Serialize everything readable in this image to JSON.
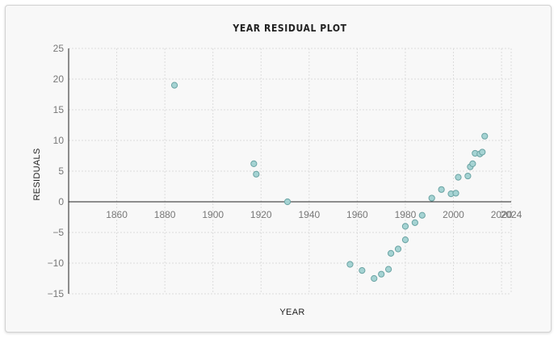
{
  "chart_data": {
    "type": "scatter",
    "title": "YEAR RESIDUAL PLOT",
    "xlabel": "YEAR",
    "ylabel": "RESIDUALS",
    "xlim": [
      1840,
      2024
    ],
    "ylim": [
      -15,
      25
    ],
    "x_ticks": [
      1860,
      1880,
      1900,
      1920,
      1940,
      1960,
      1980,
      2000,
      2020,
      2024
    ],
    "y_ticks": [
      25,
      20,
      15,
      10,
      5,
      0,
      -5,
      -10,
      -15
    ],
    "grid": true,
    "colors": {
      "point_fill": "#a5d3d3",
      "point_stroke": "#6aa3a3",
      "axis": "#222222",
      "grid": "#dcdcdc"
    },
    "points": [
      {
        "x": 1884,
        "y": 19.0
      },
      {
        "x": 1917,
        "y": 6.2
      },
      {
        "x": 1918,
        "y": 4.5
      },
      {
        "x": 1931,
        "y": 0.0
      },
      {
        "x": 1957,
        "y": -10.2
      },
      {
        "x": 1962,
        "y": -11.2
      },
      {
        "x": 1967,
        "y": -12.5
      },
      {
        "x": 1970,
        "y": -11.8
      },
      {
        "x": 1973,
        "y": -11.0
      },
      {
        "x": 1974,
        "y": -8.4
      },
      {
        "x": 1977,
        "y": -7.7
      },
      {
        "x": 1980,
        "y": -6.2
      },
      {
        "x": 1980,
        "y": -4.0
      },
      {
        "x": 1984,
        "y": -3.4
      },
      {
        "x": 1987,
        "y": -2.2
      },
      {
        "x": 1991,
        "y": 0.6
      },
      {
        "x": 1995,
        "y": 2.0
      },
      {
        "x": 1999,
        "y": 1.3
      },
      {
        "x": 2001,
        "y": 1.4
      },
      {
        "x": 2002,
        "y": 4.0
      },
      {
        "x": 2006,
        "y": 4.2
      },
      {
        "x": 2007,
        "y": 5.7
      },
      {
        "x": 2008,
        "y": 6.2
      },
      {
        "x": 2009,
        "y": 7.9
      },
      {
        "x": 2011,
        "y": 7.8
      },
      {
        "x": 2012,
        "y": 8.1
      },
      {
        "x": 2013,
        "y": 10.7
      }
    ]
  }
}
